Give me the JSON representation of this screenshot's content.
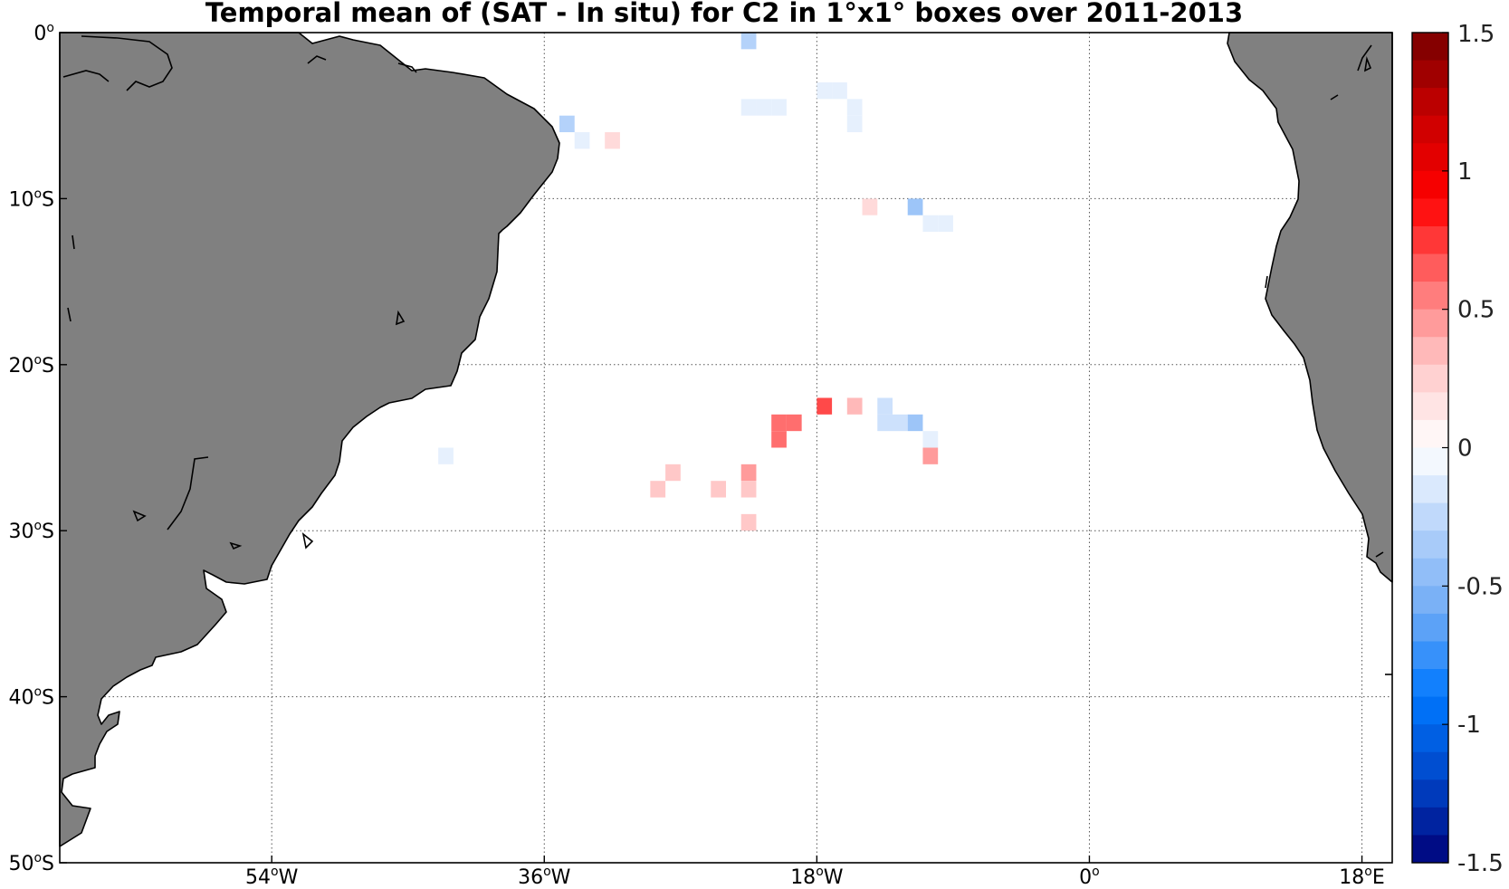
{
  "chart_data": {
    "type": "heatmap",
    "title": "Temporal mean of (SAT - In situ) for C2 in 1°x1° boxes over 2011-2013",
    "map": {
      "projection": "equirectangular",
      "lon_range": [
        -68,
        20
      ],
      "lat_range": [
        -50,
        0
      ],
      "land_color": "#808080",
      "coast_color": "#000000",
      "grid": "dotted",
      "lon_ticks": [
        {
          "value": -54,
          "label": "54",
          "suffix": "W"
        },
        {
          "value": -36,
          "label": "36",
          "suffix": "W"
        },
        {
          "value": -18,
          "label": "18",
          "suffix": "W"
        },
        {
          "value": 0,
          "label": "0",
          "suffix": ""
        },
        {
          "value": 18,
          "label": "18",
          "suffix": "E"
        }
      ],
      "lat_ticks": [
        {
          "value": 0,
          "label": "0",
          "suffix": ""
        },
        {
          "value": -10,
          "label": "10",
          "suffix": "S"
        },
        {
          "value": -20,
          "label": "20",
          "suffix": "S"
        },
        {
          "value": -30,
          "label": "30",
          "suffix": "S"
        },
        {
          "value": -40,
          "label": "40",
          "suffix": "S"
        },
        {
          "value": -50,
          "label": "50",
          "suffix": "S"
        }
      ]
    },
    "colorbar": {
      "range": [
        -1.5,
        1.5
      ],
      "levels": 30,
      "tick_values": [
        1.5,
        1,
        0.5,
        0,
        -0.5,
        -1,
        -1.5
      ],
      "tick_labels": [
        "1.5",
        "1",
        "0.5",
        "0",
        "-0.5",
        "-1",
        "-1.5"
      ],
      "colormap": "blue-white-red"
    },
    "cells": [
      {
        "lon": -22.5,
        "lat": -0.5,
        "value": -0.3
      },
      {
        "lon": -22.5,
        "lat": -4.5,
        "value": -0.1
      },
      {
        "lon": -21.5,
        "lat": -4.5,
        "value": -0.1
      },
      {
        "lon": -20.5,
        "lat": -4.5,
        "value": -0.1
      },
      {
        "lon": -17.5,
        "lat": -3.5,
        "value": -0.1
      },
      {
        "lon": -16.5,
        "lat": -3.5,
        "value": -0.1
      },
      {
        "lon": -15.5,
        "lat": -4.5,
        "value": -0.1
      },
      {
        "lon": -15.5,
        "lat": -5.5,
        "value": -0.1
      },
      {
        "lon": -34.5,
        "lat": -5.5,
        "value": -0.3
      },
      {
        "lon": -33.5,
        "lat": -6.5,
        "value": -0.1
      },
      {
        "lon": -31.5,
        "lat": -6.5,
        "value": 0.2
      },
      {
        "lon": -14.5,
        "lat": -10.5,
        "value": 0.2
      },
      {
        "lon": -11.5,
        "lat": -10.5,
        "value": -0.4
      },
      {
        "lon": -10.5,
        "lat": -11.5,
        "value": -0.1
      },
      {
        "lon": -9.5,
        "lat": -11.5,
        "value": -0.1
      },
      {
        "lon": -42.5,
        "lat": -25.5,
        "value": -0.1
      },
      {
        "lon": -17.5,
        "lat": -22.5,
        "value": 0.7
      },
      {
        "lon": -15.5,
        "lat": -22.5,
        "value": 0.35
      },
      {
        "lon": -13.5,
        "lat": -22.5,
        "value": -0.2
      },
      {
        "lon": -13.5,
        "lat": -23.5,
        "value": -0.2
      },
      {
        "lon": -12.5,
        "lat": -23.5,
        "value": -0.2
      },
      {
        "lon": -11.5,
        "lat": -23.5,
        "value": -0.4
      },
      {
        "lon": -20.5,
        "lat": -23.5,
        "value": 0.6
      },
      {
        "lon": -19.5,
        "lat": -23.5,
        "value": 0.6
      },
      {
        "lon": -20.5,
        "lat": -24.5,
        "value": 0.6
      },
      {
        "lon": -10.5,
        "lat": -24.5,
        "value": -0.1
      },
      {
        "lon": -10.5,
        "lat": -25.5,
        "value": 0.45
      },
      {
        "lon": -22.5,
        "lat": -26.5,
        "value": 0.45
      },
      {
        "lon": -22.5,
        "lat": -27.5,
        "value": 0.3
      },
      {
        "lon": -24.5,
        "lat": -27.5,
        "value": 0.3
      },
      {
        "lon": -27.5,
        "lat": -26.5,
        "value": 0.3
      },
      {
        "lon": -28.5,
        "lat": -27.5,
        "value": 0.3
      },
      {
        "lon": -22.5,
        "lat": -29.5,
        "value": 0.3
      }
    ]
  }
}
